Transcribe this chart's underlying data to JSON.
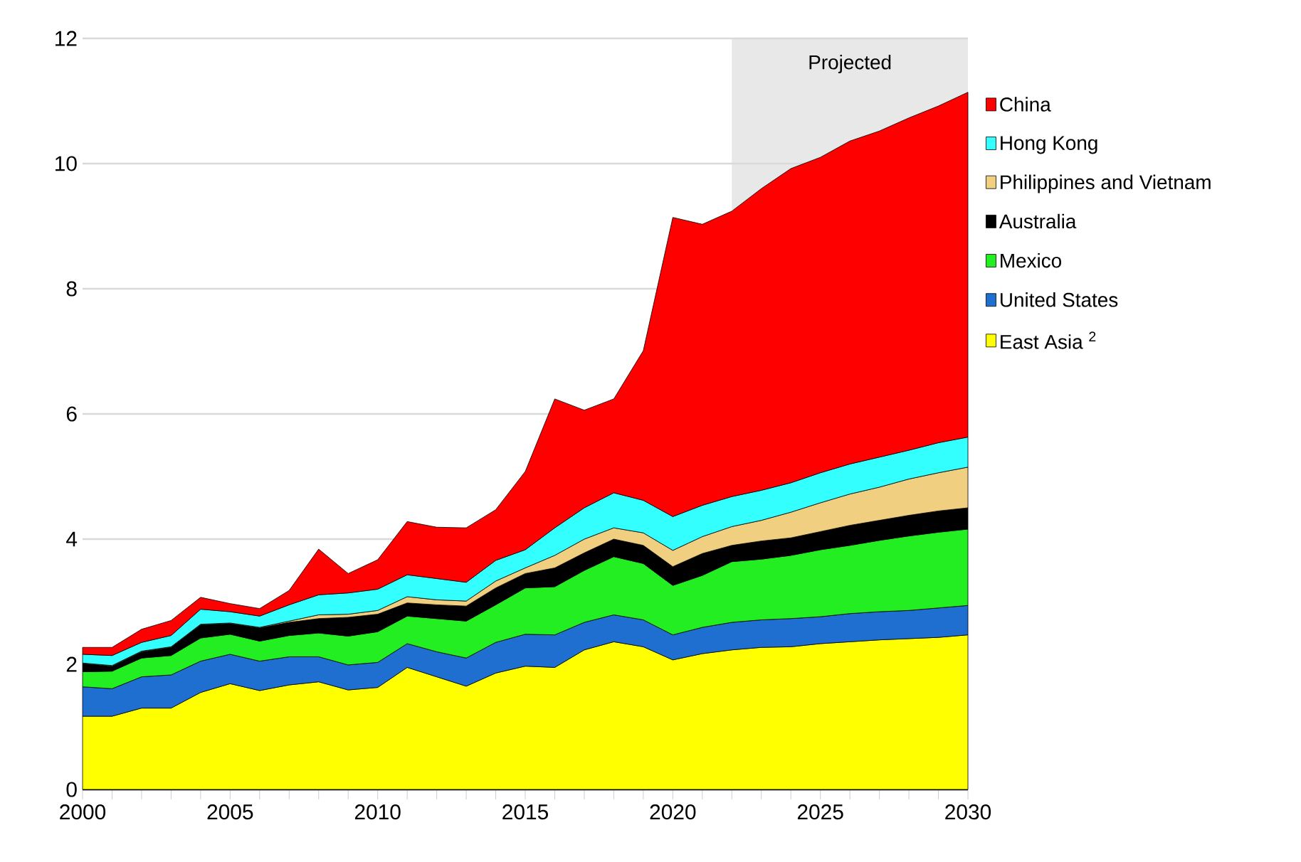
{
  "chart_data": {
    "type": "area",
    "stacked": true,
    "x": [
      2000,
      2001,
      2002,
      2003,
      2004,
      2005,
      2006,
      2007,
      2008,
      2009,
      2010,
      2011,
      2012,
      2013,
      2014,
      2015,
      2016,
      2017,
      2018,
      2019,
      2020,
      2021,
      2022,
      2023,
      2024,
      2025,
      2026,
      2027,
      2028,
      2029,
      2030
    ],
    "series": [
      {
        "name": "East Asia $^{2}$",
        "color": "#ffff00",
        "values": [
          1.17,
          1.17,
          1.3,
          1.3,
          1.55,
          1.69,
          1.58,
          1.67,
          1.72,
          1.59,
          1.63,
          1.95,
          1.8,
          1.65,
          1.86,
          1.97,
          1.95,
          2.23,
          2.36,
          2.28,
          2.07,
          2.17,
          2.23,
          2.27,
          2.28,
          2.33,
          2.36,
          2.39,
          2.41,
          2.43,
          2.47
        ]
      },
      {
        "name": "United States",
        "color": "#1f6fd0",
        "values": [
          0.47,
          0.44,
          0.5,
          0.53,
          0.5,
          0.47,
          0.47,
          0.45,
          0.4,
          0.4,
          0.4,
          0.38,
          0.4,
          0.45,
          0.49,
          0.51,
          0.52,
          0.44,
          0.43,
          0.43,
          0.4,
          0.42,
          0.44,
          0.44,
          0.45,
          0.43,
          0.45,
          0.45,
          0.45,
          0.47,
          0.47
        ]
      },
      {
        "name": "Mexico",
        "color": "#22ee22",
        "values": [
          0.24,
          0.28,
          0.3,
          0.31,
          0.37,
          0.32,
          0.32,
          0.34,
          0.38,
          0.46,
          0.49,
          0.44,
          0.53,
          0.59,
          0.6,
          0.74,
          0.77,
          0.83,
          0.93,
          0.9,
          0.79,
          0.83,
          0.97,
          0.97,
          1.01,
          1.07,
          1.09,
          1.14,
          1.19,
          1.21,
          1.22
        ]
      },
      {
        "name": "Australia",
        "color": "#000000",
        "values": [
          0.13,
          0.08,
          0.1,
          0.13,
          0.21,
          0.17,
          0.21,
          0.21,
          0.23,
          0.3,
          0.28,
          0.21,
          0.22,
          0.24,
          0.27,
          0.23,
          0.3,
          0.28,
          0.28,
          0.29,
          0.3,
          0.35,
          0.26,
          0.29,
          0.28,
          0.29,
          0.32,
          0.32,
          0.33,
          0.34,
          0.34
        ]
      },
      {
        "name": "Philippines and Vietnam",
        "color": "#f0d080",
        "values": [
          0.01,
          0.01,
          0.01,
          0.01,
          0.01,
          0.01,
          0.01,
          0.02,
          0.06,
          0.05,
          0.06,
          0.1,
          0.08,
          0.08,
          0.11,
          0.09,
          0.2,
          0.22,
          0.18,
          0.2,
          0.26,
          0.27,
          0.3,
          0.33,
          0.41,
          0.46,
          0.5,
          0.53,
          0.58,
          0.61,
          0.65
        ]
      },
      {
        "name": "Hong Kong",
        "color": "#33ffff",
        "values": [
          0.14,
          0.16,
          0.14,
          0.18,
          0.24,
          0.18,
          0.18,
          0.26,
          0.32,
          0.34,
          0.34,
          0.35,
          0.34,
          0.3,
          0.33,
          0.29,
          0.44,
          0.5,
          0.56,
          0.52,
          0.54,
          0.5,
          0.48,
          0.48,
          0.47,
          0.48,
          0.48,
          0.48,
          0.46,
          0.48,
          0.48
        ]
      },
      {
        "name": "China",
        "color": "#ff0000",
        "values": [
          0.11,
          0.13,
          0.21,
          0.24,
          0.19,
          0.13,
          0.12,
          0.23,
          0.73,
          0.31,
          0.47,
          0.85,
          0.82,
          0.87,
          0.81,
          1.25,
          2.06,
          1.56,
          1.5,
          2.39,
          4.78,
          4.49,
          4.56,
          4.82,
          5.02,
          5.04,
          5.16,
          5.21,
          5.31,
          5.38,
          5.51
        ]
      }
    ],
    "xlim": [
      2000,
      2030
    ],
    "ylim": [
      0,
      12
    ],
    "xticks": [
      2000,
      2005,
      2010,
      2015,
      2020,
      2025,
      2030
    ],
    "yticks": [
      0,
      2,
      4,
      6,
      8,
      10,
      12
    ],
    "grid": "y",
    "legend": "right",
    "bands": [
      {
        "axis": "x",
        "from": 2022,
        "to": 2030,
        "label": "Projected",
        "color": "#e8e8e8"
      }
    ]
  }
}
